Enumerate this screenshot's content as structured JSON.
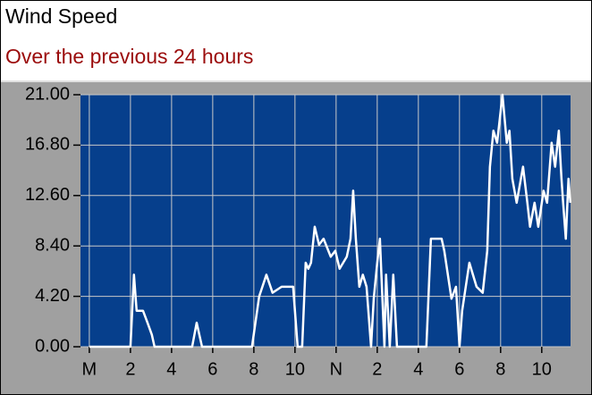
{
  "chart_data": {
    "type": "line",
    "title": "Wind Speed",
    "subtitle": "Over the previous 24  hours",
    "x": [
      0,
      2.0,
      2.17,
      2.3,
      2.61,
      2.83,
      3.04,
      3.17,
      5.0,
      5.22,
      5.48,
      7.91,
      8.26,
      8.61,
      8.91,
      9.35,
      9.91,
      10.13,
      10.35,
      10.52,
      10.65,
      10.78,
      10.96,
      11.17,
      11.39,
      11.74,
      11.96,
      12.17,
      12.52,
      12.7,
      12.83,
      12.96,
      13.13,
      13.3,
      13.48,
      13.7,
      13.83,
      14.0,
      14.13,
      14.35,
      14.43,
      14.61,
      14.78,
      14.96,
      16.39,
      16.61,
      17.13,
      17.26,
      17.61,
      17.83,
      18.0,
      18.13,
      18.48,
      18.83,
      19.13,
      19.35,
      19.48,
      19.65,
      19.83,
      20.09,
      20.3,
      20.43,
      20.57,
      20.78,
      21.09,
      21.3,
      21.43,
      21.65,
      21.83,
      22.09,
      22.26,
      22.48,
      22.65,
      22.83,
      22.96,
      23.04,
      23.17,
      23.3,
      23.39
    ],
    "series": [
      {
        "name": "Wind Speed",
        "color": "#ffffff",
        "values": [
          0,
          0,
          6,
          3,
          3,
          2,
          1,
          0,
          0,
          2,
          0,
          0,
          4.2,
          6,
          4.5,
          5,
          5,
          0,
          0,
          7,
          6.5,
          7,
          10,
          8.5,
          9,
          7.5,
          8,
          6.5,
          7.5,
          9,
          13,
          9,
          5,
          6,
          5,
          0,
          4,
          7,
          9,
          0,
          6,
          0,
          6,
          0,
          0,
          9,
          9,
          8,
          4,
          5,
          0,
          3,
          7,
          5,
          4.5,
          8,
          15,
          18,
          17,
          21,
          17,
          18,
          14,
          12,
          15,
          12,
          10,
          12,
          10,
          13,
          12,
          17,
          15,
          18,
          14,
          12,
          9,
          14,
          12
        ]
      }
    ],
    "xlim": [
      -0.43,
      23.4
    ],
    "xticks": [
      {
        "value": 0,
        "label": "M"
      },
      2,
      4,
      6,
      8,
      10,
      {
        "value": 12,
        "label": "N"
      },
      {
        "value": 14,
        "label": "2"
      },
      {
        "value": 16,
        "label": "4"
      },
      {
        "value": 18,
        "label": "6"
      },
      {
        "value": 20,
        "label": "8"
      },
      {
        "value": 22,
        "label": "10"
      }
    ],
    "ylim": [
      0,
      21
    ],
    "yticks": [
      {
        "value": 0,
        "label": "0.00"
      },
      {
        "value": 4.2,
        "label": "4.20"
      },
      {
        "value": 8.4,
        "label": "8.40"
      },
      {
        "value": 12.6,
        "label": "12.60"
      },
      {
        "value": 16.8,
        "label": "16.80"
      },
      {
        "value": 21,
        "label": "21.00"
      }
    ],
    "grid": true
  }
}
